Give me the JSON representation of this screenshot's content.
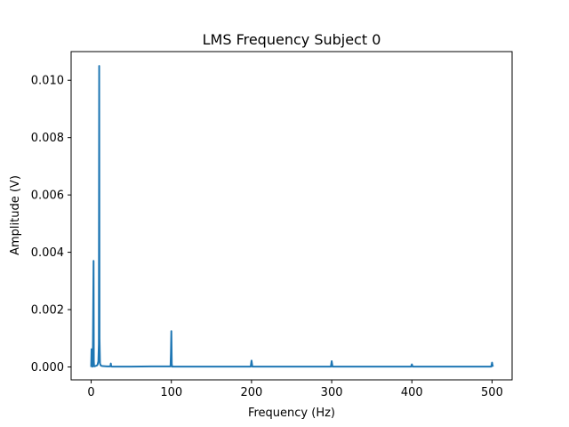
{
  "chart_data": {
    "type": "line",
    "title": "LMS Frequency Subject 0",
    "xlabel": "Frequency (Hz)",
    "ylabel": "Amplitude (V)",
    "xlim": [
      -25,
      525
    ],
    "ylim": [
      -0.00045,
      0.011
    ],
    "x_ticks": [
      0,
      100,
      200,
      300,
      400,
      500
    ],
    "x_tick_labels": [
      "0",
      "100",
      "200",
      "300",
      "400",
      "500"
    ],
    "y_ticks": [
      0.0,
      0.002,
      0.004,
      0.006,
      0.008,
      0.01
    ],
    "y_tick_labels": [
      "0.000",
      "0.002",
      "0.004",
      "0.006",
      "0.008",
      "0.010"
    ],
    "grid": false,
    "series": [
      {
        "color": "#1f77b4",
        "x": [
          0,
          0.5,
          1,
          1.5,
          2,
          3,
          3.3,
          3.6,
          4,
          5,
          6,
          7,
          8,
          9,
          9.6,
          10,
          10.4,
          11,
          12,
          14,
          20,
          24,
          24.5,
          25,
          26,
          50,
          75,
          99,
          99.5,
          100,
          100.5,
          101,
          150,
          199,
          200,
          201,
          250,
          299,
          300,
          301,
          350,
          399,
          400,
          401,
          450,
          499,
          500,
          501
        ],
        "values": [
          0.0,
          0.00062,
          2e-05,
          1e-05,
          2e-05,
          0.0037,
          0.0002,
          3e-05,
          2e-05,
          3e-05,
          4e-05,
          5e-05,
          8e-05,
          0.0002,
          0.0008,
          0.0105,
          0.001,
          0.00012,
          5e-05,
          3e-05,
          2e-05,
          2e-05,
          0.00012,
          2e-05,
          1e-05,
          1e-05,
          2e-05,
          2e-05,
          0.0005,
          0.00125,
          0.0001,
          1e-05,
          1e-05,
          1e-05,
          0.00022,
          1e-05,
          1e-05,
          1e-05,
          0.0002,
          1e-05,
          1e-05,
          1e-05,
          9e-05,
          1e-05,
          1e-05,
          1e-05,
          0.00015,
          1e-05
        ]
      }
    ]
  }
}
